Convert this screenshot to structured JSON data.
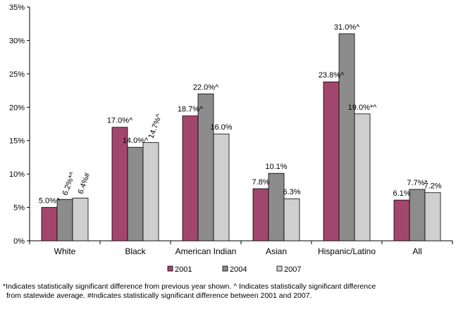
{
  "chart_data": {
    "type": "bar",
    "categories": [
      "White",
      "Black",
      "American Indian",
      "Asian",
      "Hispanic/Latino",
      "All"
    ],
    "series": [
      {
        "name": "2001",
        "color": "#A3466E",
        "values": [
          5.0,
          17.0,
          18.7,
          7.8,
          23.8,
          6.1
        ],
        "labels": [
          "5.0%^",
          "17.0%^",
          "18.7%^",
          "7.8%",
          "23.8%^",
          "6.1%"
        ]
      },
      {
        "name": "2004",
        "color": "#8C8C8C",
        "values": [
          6.2,
          14.0,
          22.0,
          10.1,
          31.0,
          7.7
        ],
        "labels": [
          "6.2%*^",
          "14.0%^",
          "22.0%^",
          "10.1%",
          "31.0%^",
          "7.7%*"
        ]
      },
      {
        "name": "2007",
        "color": "#CFCFCF",
        "values": [
          6.4,
          14.7,
          16.0,
          6.3,
          19.0,
          7.2
        ],
        "labels": [
          "6.4%#",
          "14.7%^",
          "16.0%",
          "6.3%",
          "19.0%*^",
          "7.2%"
        ]
      }
    ],
    "rotated_labels": [
      [
        false,
        true,
        true
      ],
      [
        false,
        false,
        true
      ],
      [
        false,
        false,
        false
      ],
      [
        false,
        false,
        false
      ],
      [
        false,
        false,
        false
      ],
      [
        false,
        false,
        false
      ]
    ],
    "ylim": [
      0,
      35
    ],
    "yticks": [
      "0%",
      "5%",
      "10%",
      "15%",
      "20%",
      "25%",
      "30%",
      "35%"
    ],
    "legend_position": "bottom",
    "grid": false
  },
  "footnote": {
    "line1": "*Indicates statistically significant difference from previous year shown. ^ Indicates statistically significant difference",
    "line2": "from statewide average. #Indicates statistically significant difference between 2001 and 2007."
  }
}
